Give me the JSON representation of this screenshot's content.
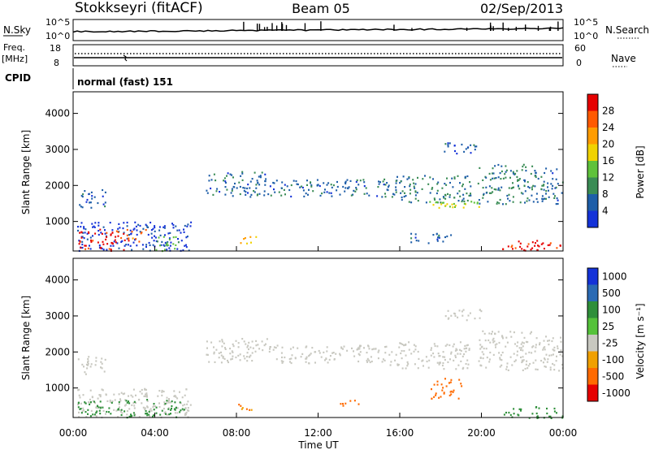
{
  "header": {
    "station": "Stokkseyri (fitACF)",
    "beam": "Beam 05",
    "date": "02/Sep/2013"
  },
  "top_panels": {
    "nsky_label": "N.Sky",
    "nsearch_label": "N.Search",
    "noise_ticks_left": [
      "10^5",
      "10^0"
    ],
    "noise_ticks_right": [
      "10^5",
      "10^0"
    ],
    "freq_label": "Freq.",
    "freq_unit": "[MHz]",
    "freq_ticks": [
      "18",
      "8"
    ],
    "nave_label": "Nave",
    "nave_ticks": [
      "60",
      "0"
    ],
    "cpid_label": "CPID",
    "cpid_value": "normal (fast) 151"
  },
  "colors": {
    "power_scale": [
      "#e60000",
      "#ff5a00",
      "#ff9c00",
      "#f0d200",
      "#5fc23b",
      "#3a8c55",
      "#1e5ea8",
      "#1432d8"
    ],
    "velocity_scale": [
      "#1432d8",
      "#2a6ab4",
      "#2f8f3a",
      "#55c23a",
      "#c8c8c0",
      "#f0a000",
      "#ff6a00",
      "#e60000"
    ]
  },
  "chart_data": [
    {
      "type": "heatmap",
      "panel": "power",
      "ylabel": "Slant Range [km]",
      "yticks": [
        "1000",
        "2000",
        "3000",
        "4000"
      ],
      "ylim": [
        180,
        4600
      ],
      "xlim": [
        "00:00",
        "24:00"
      ],
      "colorbar": {
        "label": "Power [dB]",
        "ticks": [
          "4",
          "8",
          "12",
          "16",
          "20",
          "24",
          "28"
        ],
        "range": [
          0,
          30
        ]
      },
      "regions": [
        {
          "t0": 0.2,
          "t1": 5.8,
          "r0": 200,
          "r1": 1000,
          "level": 2
        },
        {
          "t0": 0.2,
          "t1": 2.5,
          "r0": 200,
          "r1": 800,
          "level": 28
        },
        {
          "t0": 2.6,
          "t1": 3.6,
          "r0": 450,
          "r1": 800,
          "level": 24
        },
        {
          "t0": 4.0,
          "t1": 5.2,
          "r0": 200,
          "r1": 600,
          "level": 12
        },
        {
          "t0": 0.2,
          "t1": 1.6,
          "r0": 1400,
          "r1": 1900,
          "level": 5
        },
        {
          "t0": 6.5,
          "t1": 9.5,
          "r0": 1700,
          "r1": 2400,
          "level": 6
        },
        {
          "t0": 9.5,
          "t1": 15.5,
          "r0": 1700,
          "r1": 2200,
          "level": 6
        },
        {
          "t0": 15.5,
          "t1": 19.5,
          "r0": 1550,
          "r1": 2300,
          "level": 8
        },
        {
          "t0": 17.2,
          "t1": 20.0,
          "r0": 1400,
          "r1": 1650,
          "level": 14
        },
        {
          "t0": 18.0,
          "t1": 20.0,
          "r0": 2900,
          "r1": 3200,
          "level": 5
        },
        {
          "t0": 19.8,
          "t1": 22.5,
          "r0": 1500,
          "r1": 2600,
          "level": 8
        },
        {
          "t0": 22.5,
          "t1": 24.0,
          "r0": 1500,
          "r1": 2500,
          "level": 6
        },
        {
          "t0": 21.0,
          "t1": 24.0,
          "r0": 180,
          "r1": 500,
          "level": 28
        },
        {
          "t0": 16.5,
          "t1": 18.5,
          "r0": 400,
          "r1": 700,
          "level": 5
        },
        {
          "t0": 8.0,
          "t1": 9.0,
          "r0": 400,
          "r1": 600,
          "level": 20
        }
      ]
    },
    {
      "type": "heatmap",
      "panel": "velocity",
      "ylabel": "Slant Range [km]",
      "yticks": [
        "1000",
        "2000",
        "3000",
        "4000"
      ],
      "ylim": [
        180,
        4600
      ],
      "xlim": [
        "00:00",
        "24:00"
      ],
      "xticks": [
        "00:00",
        "04:00",
        "08:00",
        "12:00",
        "16:00",
        "20:00",
        "00:00"
      ],
      "xlabel": "Time UT",
      "colorbar": {
        "label": "Velocity [m s⁻¹]",
        "ticks": [
          "1000",
          "500",
          "100",
          "25",
          "-25",
          "-100",
          "-500",
          "-1000"
        ],
        "range": [
          -1200,
          1200
        ]
      },
      "regions": [
        {
          "t0": 0.2,
          "t1": 5.8,
          "r0": 200,
          "r1": 1000,
          "level": 0
        },
        {
          "t0": 0.2,
          "t1": 3.0,
          "r0": 200,
          "r1": 700,
          "level": 150
        },
        {
          "t0": 3.5,
          "t1": 5.5,
          "r0": 200,
          "r1": 700,
          "level": 300
        },
        {
          "t0": 0.2,
          "t1": 1.6,
          "r0": 1400,
          "r1": 1900,
          "level": 0
        },
        {
          "t0": 6.5,
          "t1": 9.5,
          "r0": 1700,
          "r1": 2400,
          "level": 0
        },
        {
          "t0": 9.5,
          "t1": 15.5,
          "r0": 1700,
          "r1": 2200,
          "level": 0
        },
        {
          "t0": 15.5,
          "t1": 19.5,
          "r0": 1550,
          "r1": 2300,
          "level": 0
        },
        {
          "t0": 18.0,
          "t1": 20.0,
          "r0": 2900,
          "r1": 3200,
          "level": 0
        },
        {
          "t0": 19.8,
          "t1": 22.5,
          "r0": 1500,
          "r1": 2600,
          "level": 0
        },
        {
          "t0": 22.5,
          "t1": 24.0,
          "r0": 1500,
          "r1": 2500,
          "level": 0
        },
        {
          "t0": 17.5,
          "t1": 19.0,
          "r0": 700,
          "r1": 1300,
          "level": -400
        },
        {
          "t0": 21.0,
          "t1": 24.0,
          "r0": 180,
          "r1": 500,
          "level": 150
        },
        {
          "t0": 13.0,
          "t1": 14.0,
          "r0": 500,
          "r1": 700,
          "level": -150
        },
        {
          "t0": 8.0,
          "t1": 9.0,
          "r0": 400,
          "r1": 600,
          "level": -100
        }
      ]
    }
  ]
}
